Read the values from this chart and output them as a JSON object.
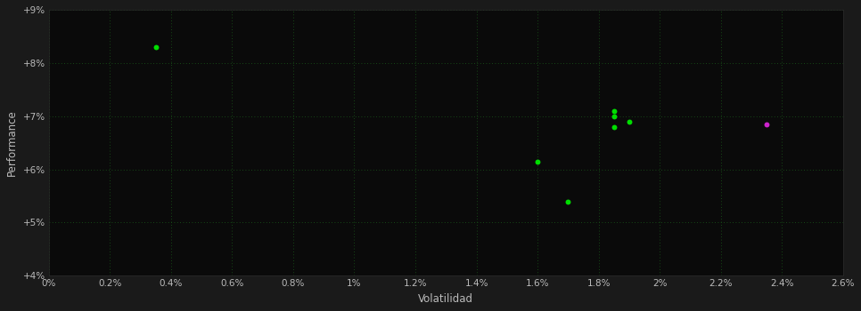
{
  "background_color": "#1a1a1a",
  "plot_bg_color": "#0a0a0a",
  "grid_color": "#1a5c1a",
  "text_color": "#bbbbbb",
  "xlabel": "Volatilidad",
  "ylabel": "Performance",
  "xlim": [
    0.0,
    0.026
  ],
  "ylim": [
    0.04,
    0.09
  ],
  "xtick_vals": [
    0.0,
    0.002,
    0.004,
    0.006,
    0.008,
    0.01,
    0.012,
    0.014,
    0.016,
    0.018,
    0.02,
    0.022,
    0.024,
    0.026
  ],
  "ytick_vals": [
    0.04,
    0.05,
    0.06,
    0.07,
    0.08,
    0.09
  ],
  "green_points": [
    [
      0.0035,
      0.083
    ],
    [
      0.0185,
      0.071
    ],
    [
      0.0185,
      0.07
    ],
    [
      0.019,
      0.069
    ],
    [
      0.0185,
      0.068
    ],
    [
      0.016,
      0.0615
    ],
    [
      0.017,
      0.054
    ]
  ],
  "magenta_points": [
    [
      0.0235,
      0.0685
    ]
  ],
  "green_color": "#00dd00",
  "magenta_color": "#cc22cc",
  "point_size": 18
}
